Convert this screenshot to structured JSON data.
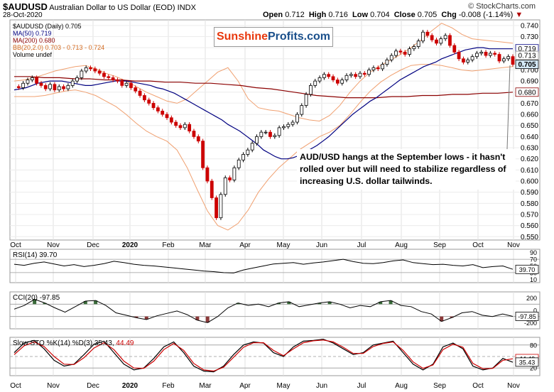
{
  "header": {
    "symbol": "$AUDUSD",
    "description": "Australian Dollar to US Dollar (EOD)",
    "exchange": "INDX",
    "date": "28-Oct-2020",
    "open_label": "Open",
    "open": "0.712",
    "high_label": "High",
    "high": "0.716",
    "low_label": "Low",
    "low": "0.704",
    "close_label": "Close",
    "close": "0.705",
    "chg_label": "Chg",
    "chg": "-0.008 (-1.14%)",
    "chg_arrow": "▼",
    "watermark": "© StockCharts.com"
  },
  "logo": {
    "part1": "Sunshine",
    "part2": "Profits.com"
  },
  "annotation": "AUD/USD hangs at the September lows - it hasn't rolled over but will need to stabilize regardless of increasing U.S. dollar tailwinds.",
  "colors": {
    "bullish": "#000000",
    "bearish": "#cc0000",
    "ma50": "#000080",
    "ma200": "#8b0000",
    "bb": "#f0a070",
    "positive_fill": "#3a6b3a",
    "negative_fill": "#8b3a3a",
    "up_label": "#d4e9f7"
  },
  "chart_data": [
    {
      "type": "candlestick",
      "legend": [
        {
          "text": "$AUDUSD (Daily) 0.705",
          "color": "#000000"
        },
        {
          "text": "MA(50) 0.719",
          "color": "#000080"
        },
        {
          "text": "MA(200) 0.680",
          "color": "#8b0000"
        },
        {
          "text": "BB(20,2.0) 0.703 - 0.713 - 0.724",
          "color": "#d2691e"
        },
        {
          "text": "Volume undef",
          "color": "#000000"
        }
      ],
      "x_labels": [
        "Oct",
        "Nov",
        "Dec",
        "2020",
        "Feb",
        "Mar",
        "Apr",
        "May",
        "Jun",
        "Jul",
        "Aug",
        "Sep",
        "Oct",
        "Nov"
      ],
      "y_ticks": [
        0.74,
        0.73,
        0.72,
        0.71,
        0.7,
        0.69,
        0.68,
        0.67,
        0.66,
        0.65,
        0.64,
        0.63,
        0.62,
        0.61,
        0.6,
        0.59,
        0.58,
        0.57,
        0.56,
        0.55
      ],
      "ylim": [
        0.547,
        0.745
      ],
      "last_labels": [
        {
          "value": "0.719",
          "y": 0.719,
          "type": "ma50"
        },
        {
          "value": "0.713",
          "y": 0.713,
          "type": "plain"
        },
        {
          "value": "0.705",
          "y": 0.705,
          "type": "price"
        },
        {
          "value": "0.680",
          "y": 0.68,
          "type": "ma200"
        }
      ],
      "price_path": [
        0.685,
        0.684,
        0.688,
        0.691,
        0.693,
        0.688,
        0.686,
        0.683,
        0.687,
        0.682,
        0.685,
        0.683,
        0.686,
        0.69,
        0.693,
        0.699,
        0.702,
        0.701,
        0.699,
        0.697,
        0.694,
        0.693,
        0.691,
        0.69,
        0.686,
        0.688,
        0.684,
        0.681,
        0.677,
        0.673,
        0.67,
        0.666,
        0.663,
        0.66,
        0.657,
        0.653,
        0.65,
        0.648,
        0.651,
        0.645,
        0.64,
        0.636,
        0.612,
        0.6,
        0.585,
        0.567,
        0.588,
        0.603,
        0.601,
        0.612,
        0.619,
        0.624,
        0.628,
        0.634,
        0.64,
        0.644,
        0.644,
        0.64,
        0.641,
        0.648,
        0.649,
        0.651,
        0.653,
        0.66,
        0.668,
        0.678,
        0.686,
        0.69,
        0.693,
        0.696,
        0.694,
        0.691,
        0.688,
        0.691,
        0.695,
        0.696,
        0.694,
        0.697,
        0.696,
        0.7,
        0.702,
        0.701,
        0.705,
        0.709,
        0.713,
        0.717,
        0.716,
        0.714,
        0.719,
        0.721,
        0.726,
        0.734,
        0.731,
        0.727,
        0.724,
        0.728,
        0.731,
        0.722,
        0.716,
        0.71,
        0.707,
        0.709,
        0.712,
        0.715,
        0.716,
        0.713,
        0.715,
        0.714,
        0.708,
        0.71,
        0.712,
        0.705
      ],
      "ma50_path": [
        0.682,
        0.683,
        0.684,
        0.686,
        0.688,
        0.689,
        0.69,
        0.69,
        0.69,
        0.689,
        0.688,
        0.687,
        0.686,
        0.686,
        0.687,
        0.688,
        0.689,
        0.69,
        0.69,
        0.69,
        0.689,
        0.688,
        0.687,
        0.686,
        0.684,
        0.683,
        0.681,
        0.679,
        0.676,
        0.673,
        0.67,
        0.667,
        0.664,
        0.661,
        0.658,
        0.655,
        0.651,
        0.648,
        0.645,
        0.641,
        0.637,
        0.633,
        0.628,
        0.625,
        0.622,
        0.62,
        0.62,
        0.621,
        0.623,
        0.626,
        0.629,
        0.632,
        0.636,
        0.64,
        0.645,
        0.65,
        0.655,
        0.66,
        0.664,
        0.668,
        0.672,
        0.675,
        0.679,
        0.683,
        0.687,
        0.691,
        0.694,
        0.697,
        0.7,
        0.703,
        0.705,
        0.707,
        0.71,
        0.712,
        0.714,
        0.716,
        0.718,
        0.719,
        0.72,
        0.72,
        0.719,
        0.719,
        0.719,
        0.719,
        0.719
      ],
      "ma200_path": [
        0.694,
        0.694,
        0.693,
        0.693,
        0.692,
        0.692,
        0.691,
        0.691,
        0.69,
        0.69,
        0.689,
        0.689,
        0.688,
        0.688,
        0.687,
        0.686,
        0.684,
        0.683,
        0.681,
        0.679,
        0.677,
        0.676,
        0.675,
        0.675,
        0.675,
        0.676,
        0.676,
        0.677,
        0.677,
        0.678,
        0.678,
        0.679,
        0.679,
        0.68
      ],
      "bb_upper_path": [
        0.69,
        0.691,
        0.693,
        0.696,
        0.699,
        0.701,
        0.703,
        0.704,
        0.701,
        0.697,
        0.694,
        0.69,
        0.685,
        0.68,
        0.676,
        0.672,
        0.67,
        0.674,
        0.682,
        0.69,
        0.698,
        0.702,
        0.69,
        0.674,
        0.666,
        0.664,
        0.663,
        0.66,
        0.657,
        0.655,
        0.654,
        0.659,
        0.668,
        0.68,
        0.69,
        0.698,
        0.704,
        0.709,
        0.714,
        0.72,
        0.727,
        0.735,
        0.742,
        0.738,
        0.732,
        0.728,
        0.727,
        0.726,
        0.725,
        0.724
      ],
      "bb_lower_path": [
        0.676,
        0.676,
        0.676,
        0.677,
        0.679,
        0.681,
        0.682,
        0.68,
        0.677,
        0.672,
        0.667,
        0.66,
        0.652,
        0.645,
        0.64,
        0.636,
        0.628,
        0.612,
        0.592,
        0.573,
        0.56,
        0.556,
        0.562,
        0.574,
        0.59,
        0.602,
        0.612,
        0.62,
        0.628,
        0.634,
        0.64,
        0.644,
        0.65,
        0.66,
        0.671,
        0.681,
        0.689,
        0.695,
        0.7,
        0.704,
        0.705,
        0.705,
        0.704,
        0.702,
        0.7,
        0.699,
        0.7,
        0.701,
        0.702,
        0.703
      ]
    },
    {
      "type": "line",
      "title": "RSI(14) 39.70",
      "ylim": [
        0,
        100
      ],
      "y_ticks": [
        90,
        70,
        50,
        30,
        10
      ],
      "threshold_lines": [
        70,
        30
      ],
      "last_value": "39.70",
      "values": [
        55,
        52,
        58,
        62,
        56,
        50,
        54,
        48,
        52,
        57,
        64,
        60,
        55,
        52,
        50,
        47,
        44,
        41,
        38,
        35,
        33,
        30,
        29,
        38,
        44,
        50,
        56,
        58,
        60,
        55,
        59,
        62,
        66,
        70,
        63,
        58,
        57,
        60,
        65,
        68,
        60,
        57,
        54,
        55,
        52,
        50,
        54,
        45,
        48,
        50,
        40
      ]
    },
    {
      "type": "line",
      "title": "CCI(20) -97.85",
      "ylim": [
        -300,
        300
      ],
      "y_ticks": [
        200,
        0,
        -200
      ],
      "threshold_lines": [
        100,
        -100
      ],
      "last_value": "-97.85",
      "values": [
        20,
        80,
        180,
        120,
        40,
        -30,
        60,
        150,
        160,
        80,
        -40,
        -80,
        -120,
        -150,
        -90,
        -50,
        -10,
        -70,
        -160,
        -200,
        -100,
        40,
        120,
        80,
        100,
        60,
        120,
        140,
        60,
        90,
        120,
        140,
        100,
        40,
        80,
        60,
        140,
        160,
        80,
        60,
        -20,
        -60,
        -180,
        -120,
        -40,
        -20,
        -80,
        -100,
        -60,
        -98
      ]
    },
    {
      "type": "line",
      "title": "Slow STO %K(14) %D(3) 35.43, 44.49",
      "title_parts": [
        {
          "text": "Slow STO %K(14) %D(3) 35.43,",
          "color": "#000000"
        },
        {
          "text": "44.49",
          "color": "#cc0000"
        }
      ],
      "ylim": [
        0,
        100
      ],
      "y_ticks": [
        80,
        20
      ],
      "threshold_lines": [
        80,
        50,
        20
      ],
      "last_values": [
        "44.49",
        "35.43"
      ],
      "series": [
        {
          "name": "%K",
          "values": [
            60,
            85,
            92,
            70,
            40,
            25,
            30,
            55,
            82,
            90,
            60,
            30,
            15,
            20,
            45,
            75,
            88,
            60,
            25,
            12,
            10,
            25,
            55,
            80,
            88,
            85,
            60,
            50,
            75,
            90,
            92,
            95,
            85,
            70,
            55,
            60,
            80,
            85,
            90,
            60,
            30,
            15,
            30,
            75,
            85,
            70,
            25,
            15,
            20,
            45,
            35
          ]
        },
        {
          "name": "%D",
          "values": [
            55,
            78,
            88,
            76,
            50,
            30,
            29,
            47,
            72,
            86,
            68,
            38,
            20,
            19,
            38,
            68,
            84,
            66,
            32,
            15,
            12,
            22,
            48,
            74,
            86,
            86,
            66,
            52,
            70,
            86,
            91,
            93,
            88,
            74,
            58,
            58,
            76,
            84,
            88,
            66,
            36,
            19,
            28,
            68,
            82,
            74,
            32,
            18,
            19,
            40,
            44
          ]
        }
      ],
      "x_labels": [
        "Oct",
        "Nov",
        "Dec",
        "2020",
        "Feb",
        "Mar",
        "Apr",
        "May",
        "Jun",
        "Jul",
        "Aug",
        "Sep",
        "Oct",
        "Nov"
      ]
    }
  ]
}
